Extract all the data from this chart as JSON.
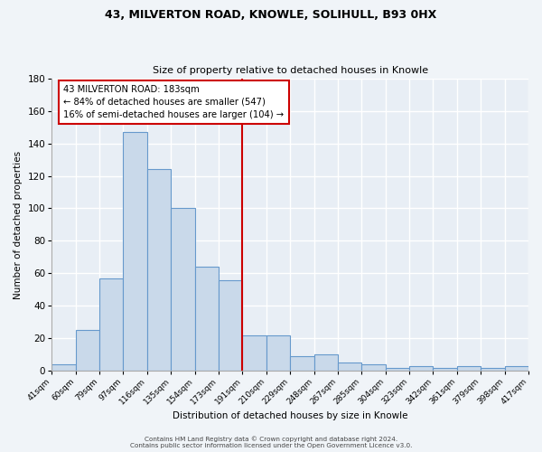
{
  "title": "43, MILVERTON ROAD, KNOWLE, SOLIHULL, B93 0HX",
  "subtitle": "Size of property relative to detached houses in Knowle",
  "xlabel": "Distribution of detached houses by size in Knowle",
  "ylabel": "Number of detached properties",
  "bar_color": "#c9d9ea",
  "bar_edge_color": "#6699cc",
  "bg_color": "#e8eef5",
  "fig_bg_color": "#f0f4f8",
  "grid_color": "#ffffff",
  "categories": [
    "41sqm",
    "60sqm",
    "79sqm",
    "97sqm",
    "116sqm",
    "135sqm",
    "154sqm",
    "173sqm",
    "191sqm",
    "210sqm",
    "229sqm",
    "248sqm",
    "267sqm",
    "285sqm",
    "304sqm",
    "323sqm",
    "342sqm",
    "361sqm",
    "379sqm",
    "398sqm",
    "417sqm"
  ],
  "values": [
    4,
    25,
    57,
    147,
    124,
    100,
    64,
    56,
    22,
    22,
    9,
    10,
    5,
    4,
    2,
    3,
    2,
    3,
    2,
    3
  ],
  "vline_color": "#cc0000",
  "annotation_title": "43 MILVERTON ROAD: 183sqm",
  "annotation_line1": "← 84% of detached houses are smaller (547)",
  "annotation_line2": "16% of semi-detached houses are larger (104) →",
  "annotation_box_color": "#cc0000",
  "ylim": [
    0,
    180
  ],
  "yticks": [
    0,
    20,
    40,
    60,
    80,
    100,
    120,
    140,
    160,
    180
  ],
  "footer1": "Contains HM Land Registry data © Crown copyright and database right 2024.",
  "footer2": "Contains public sector information licensed under the Open Government Licence v3.0."
}
